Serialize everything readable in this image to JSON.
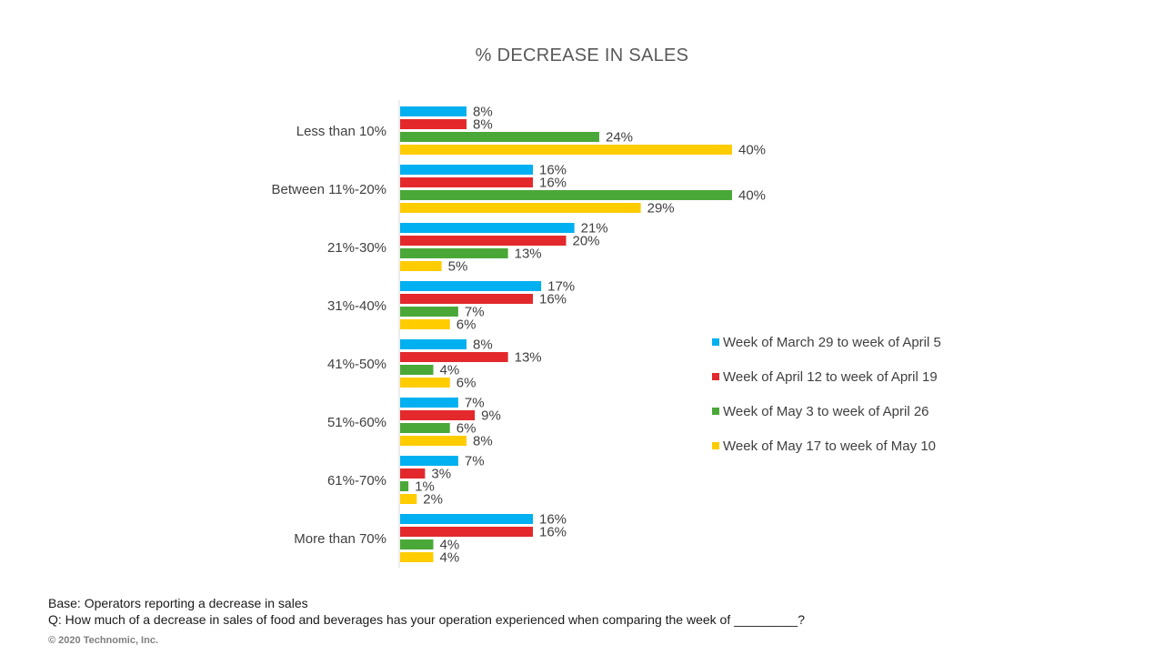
{
  "chart_data": {
    "type": "bar",
    "orientation": "horizontal",
    "title": "% DECREASE  IN SALES",
    "categories": [
      "Less than 10%",
      "Between 11%-20%",
      "21%-30%",
      "31%-40%",
      "41%-50%",
      "51%-60%",
      "61%-70%",
      "More than 70%"
    ],
    "series": [
      {
        "name": "Week of March 29 to week of April 5",
        "color": "#00b0f0",
        "values": [
          8,
          16,
          21,
          17,
          8,
          7,
          7,
          16
        ]
      },
      {
        "name": "Week of April 12 to week of April 19",
        "color": "#e3292c",
        "values": [
          8,
          16,
          20,
          16,
          13,
          9,
          3,
          16
        ]
      },
      {
        "name": "Week of May 3 to week of April 26",
        "color": "#4aa838",
        "values": [
          24,
          40,
          13,
          7,
          4,
          6,
          1,
          4
        ]
      },
      {
        "name": "Week of May 17 to week of May 10",
        "color": "#ffcc00",
        "values": [
          40,
          29,
          5,
          6,
          6,
          8,
          2,
          4
        ]
      }
    ],
    "value_suffix": "%",
    "xlim": [
      0,
      100
    ],
    "grid": false,
    "legend_position": "right"
  },
  "footer": {
    "base": "Base: Operators reporting a decrease in sales",
    "question": "Q: How much of a decrease in sales of food and beverages has your operation experienced when comparing the week of _________?",
    "copyright": "© 2020 Technomic, Inc."
  }
}
